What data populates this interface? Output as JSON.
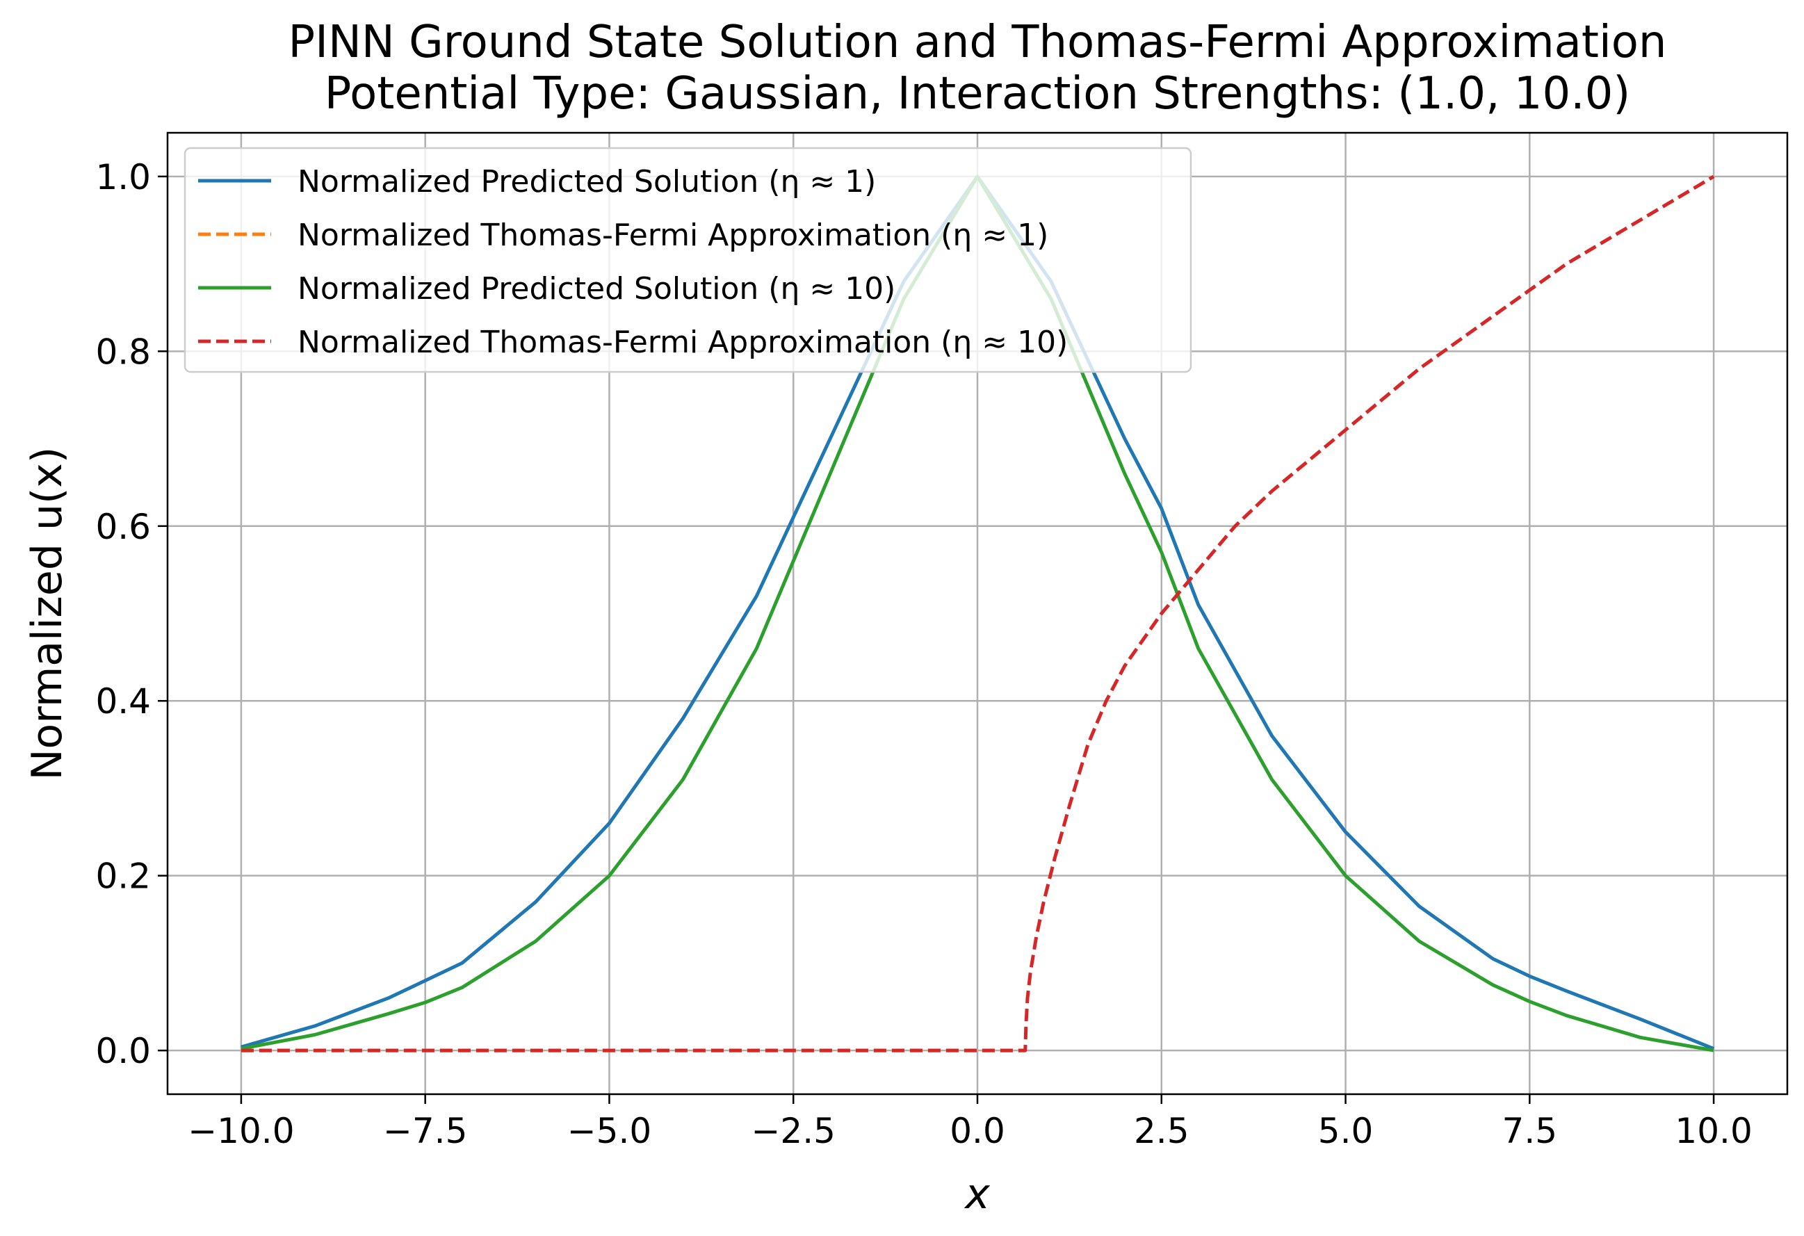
{
  "chart_data": {
    "type": "line",
    "title": [
      "PINN Ground State Solution and Thomas-Fermi Approximation",
      "Potential Type: Gaussian, Interaction Strengths: (1.0, 10.0)"
    ],
    "xlabel": "x",
    "ylabel": "Normalized u(x)",
    "xlim": [
      -11,
      11
    ],
    "ylim": [
      -0.05,
      1.05
    ],
    "xticks": [
      -10.0,
      -7.5,
      -5.0,
      -2.5,
      0.0,
      2.5,
      5.0,
      7.5,
      10.0
    ],
    "xtick_labels": [
      "−10.0",
      "−7.5",
      "−5.0",
      "−2.5",
      "0.0",
      "2.5",
      "5.0",
      "7.5",
      "10.0"
    ],
    "yticks": [
      0.0,
      0.2,
      0.4,
      0.6,
      0.8,
      1.0
    ],
    "ytick_labels": [
      "0.0",
      "0.2",
      "0.4",
      "0.6",
      "0.8",
      "1.0"
    ],
    "grid": true,
    "legend_position": "top-left",
    "series": [
      {
        "name": "Normalized Predicted Solution (η ≈ 1)",
        "color": "#1f77b4",
        "dash": "solid",
        "x": [
          -10,
          -9,
          -8,
          -7.5,
          -7,
          -6,
          -5,
          -4,
          -3,
          -2.5,
          -2,
          -1,
          0,
          1,
          2,
          2.5,
          3,
          4,
          5,
          6,
          7,
          7.5,
          8,
          9,
          10
        ],
        "y": [
          0.004,
          0.028,
          0.06,
          0.08,
          0.1,
          0.17,
          0.26,
          0.38,
          0.52,
          0.61,
          0.7,
          0.88,
          1.0,
          0.88,
          0.7,
          0.62,
          0.51,
          0.36,
          0.25,
          0.165,
          0.105,
          0.085,
          0.068,
          0.036,
          0.002
        ]
      },
      {
        "name": "Normalized Thomas-Fermi Approximation (η ≈ 1)",
        "color": "#ff7f0e",
        "dash": "dashed",
        "x": [
          -10,
          0.65
        ],
        "y": [
          0.0,
          0.0
        ]
      },
      {
        "name": "Normalized Predicted Solution (η ≈ 10)",
        "color": "#2ca02c",
        "dash": "solid",
        "x": [
          -10,
          -9,
          -8,
          -7.5,
          -7,
          -6,
          -5,
          -4,
          -3,
          -2.5,
          -2,
          -1,
          0,
          1,
          2,
          2.5,
          3,
          4,
          5,
          6,
          7,
          7.5,
          8,
          9,
          10
        ],
        "y": [
          0.002,
          0.018,
          0.042,
          0.055,
          0.072,
          0.125,
          0.2,
          0.31,
          0.46,
          0.56,
          0.66,
          0.86,
          1.0,
          0.86,
          0.66,
          0.57,
          0.46,
          0.31,
          0.2,
          0.125,
          0.075,
          0.056,
          0.04,
          0.015,
          0.0
        ]
      },
      {
        "name": "Normalized Thomas-Fermi Approximation (η ≈ 10)",
        "color": "#d62728",
        "dash": "dashed",
        "x": [
          -10,
          0.65,
          0.66,
          0.68,
          0.72,
          0.8,
          0.9,
          1.05,
          1.25,
          1.5,
          1.75,
          2.0,
          2.5,
          3.0,
          3.5,
          4.0,
          5.0,
          6.0,
          7.0,
          8.0,
          9.0,
          10.0
        ],
        "y": [
          0.0,
          0.0,
          0.03,
          0.06,
          0.09,
          0.13,
          0.17,
          0.22,
          0.28,
          0.35,
          0.4,
          0.44,
          0.5,
          0.55,
          0.6,
          0.64,
          0.71,
          0.78,
          0.84,
          0.9,
          0.95,
          1.0
        ]
      }
    ]
  }
}
